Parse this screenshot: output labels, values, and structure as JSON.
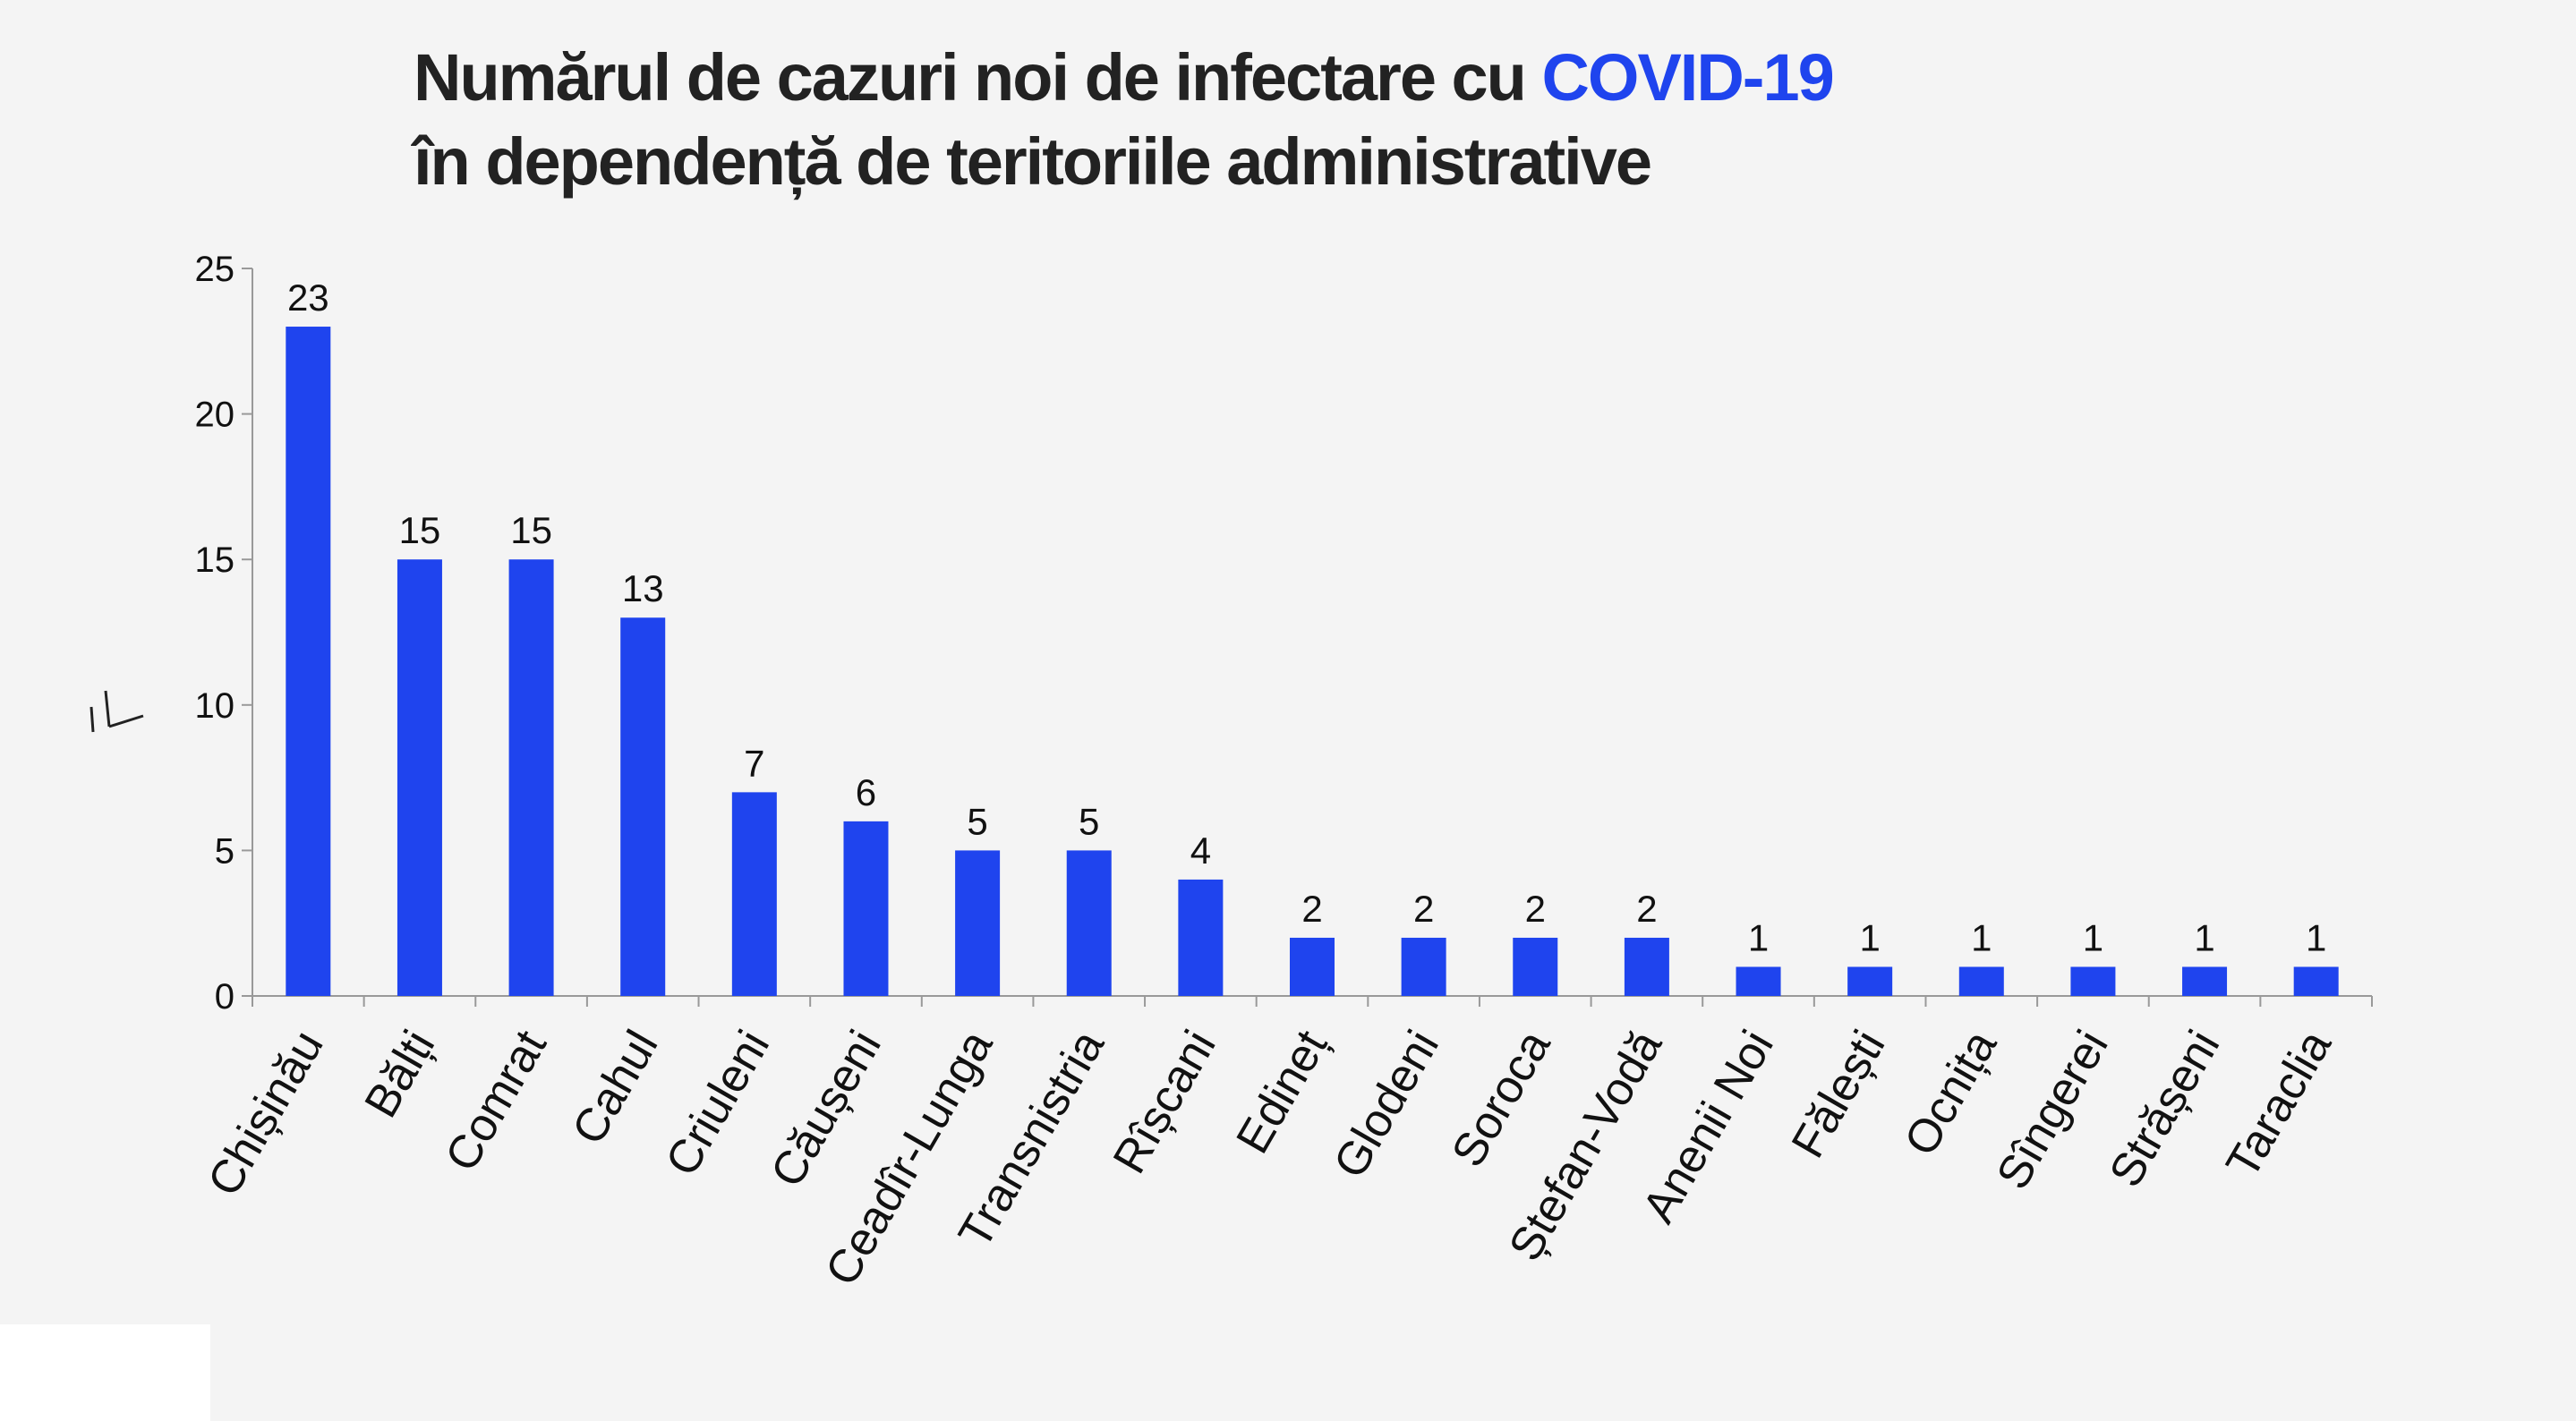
{
  "title": {
    "line1_prefix": "Numărul de cazuri noi de infectare cu ",
    "line1_highlight": "COVID-19",
    "line2": "în dependență de teritoriile administrative"
  },
  "colors": {
    "bar": "#1f44ee",
    "highlight": "#1f44ee",
    "title": "#222222",
    "axis": "#999999",
    "background": "#f4f4f4"
  },
  "chart_data": {
    "type": "bar",
    "ylabel": "",
    "ylim": [
      0,
      25
    ],
    "yticks": [
      0,
      5,
      10,
      15,
      20,
      25
    ],
    "grid": false,
    "data_labels": true,
    "categories": [
      "Chișinău",
      "Bălți",
      "Comrat",
      "Cahul",
      "Criuleni",
      "Căușeni",
      "Ceadîr-Lunga",
      "Transnistria",
      "Rîșcani",
      "Edineț",
      "Glodeni",
      "Soroca",
      "Ștefan-Vodă",
      "Anenii Noi",
      "Fălești",
      "Ocnița",
      "Sîngerei",
      "Strășeni",
      "Taraclia"
    ],
    "values": [
      23,
      15,
      15,
      13,
      7,
      6,
      5,
      5,
      4,
      2,
      2,
      2,
      2,
      1,
      1,
      1,
      1,
      1,
      1
    ]
  }
}
